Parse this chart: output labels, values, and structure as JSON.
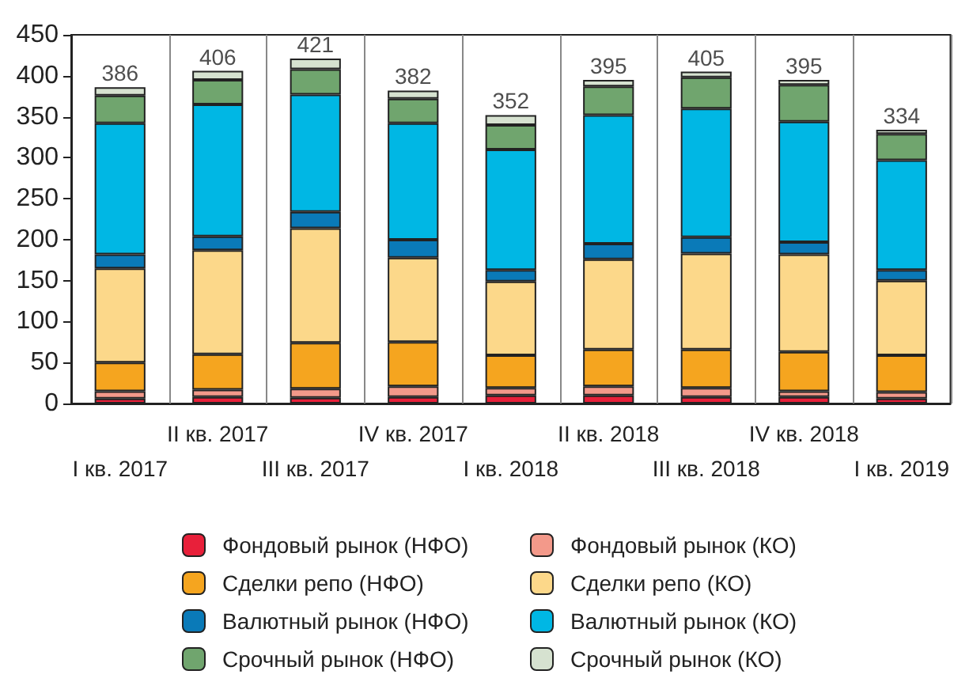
{
  "chart_data": {
    "type": "bar",
    "stacked": true,
    "categories": [
      "I кв. 2017",
      "II кв. 2017",
      "III кв. 2017",
      "IV кв. 2017",
      "I кв. 2018",
      "II кв. 2018",
      "III кв. 2018",
      "IV кв. 2018",
      "I кв. 2019"
    ],
    "ylim": [
      0,
      450
    ],
    "yticks": [
      0,
      50,
      100,
      150,
      200,
      250,
      300,
      350,
      400,
      450
    ],
    "grid": "x",
    "legend": "bottom",
    "totals": [
      "386",
      "406",
      "421",
      "382",
      "352",
      "395",
      "405",
      "395",
      "334"
    ],
    "series": [
      {
        "name": "Фондовый рынок (НФО)",
        "color": "#e8203a",
        "values": [
          6,
          8,
          7,
          8,
          10,
          10,
          8,
          8,
          6
        ]
      },
      {
        "name": "Фондовый рынок (КО)",
        "color": "#f3998a",
        "values": [
          9,
          9,
          11,
          13,
          9,
          11,
          11,
          7,
          8
        ]
      },
      {
        "name": "Сделки репо (НФО)",
        "color": "#f5a51f",
        "values": [
          35,
          43,
          56,
          54,
          40,
          45,
          47,
          48,
          45
        ]
      },
      {
        "name": "Сделки репо (КО)",
        "color": "#fcd88a",
        "values": [
          115,
          127,
          140,
          103,
          90,
          110,
          117,
          119,
          91
        ]
      },
      {
        "name": "Валютный рынок (НФО)",
        "color": "#0a7ab8",
        "values": [
          17,
          17,
          20,
          22,
          14,
          19,
          20,
          15,
          13
        ]
      },
      {
        "name": "Валютный рынок (КО)",
        "color": "#00b7e4",
        "values": [
          160,
          161,
          143,
          142,
          147,
          157,
          157,
          147,
          134
        ]
      },
      {
        "name": "Срочный рынок (НФО)",
        "color": "#70a56e",
        "values": [
          34,
          30,
          31,
          30,
          30,
          35,
          38,
          45,
          32
        ]
      },
      {
        "name": "Срочный рынок (КО)",
        "color": "#d6e2d0",
        "values": [
          10,
          11,
          13,
          10,
          12,
          8,
          7,
          6,
          5
        ]
      }
    ]
  }
}
